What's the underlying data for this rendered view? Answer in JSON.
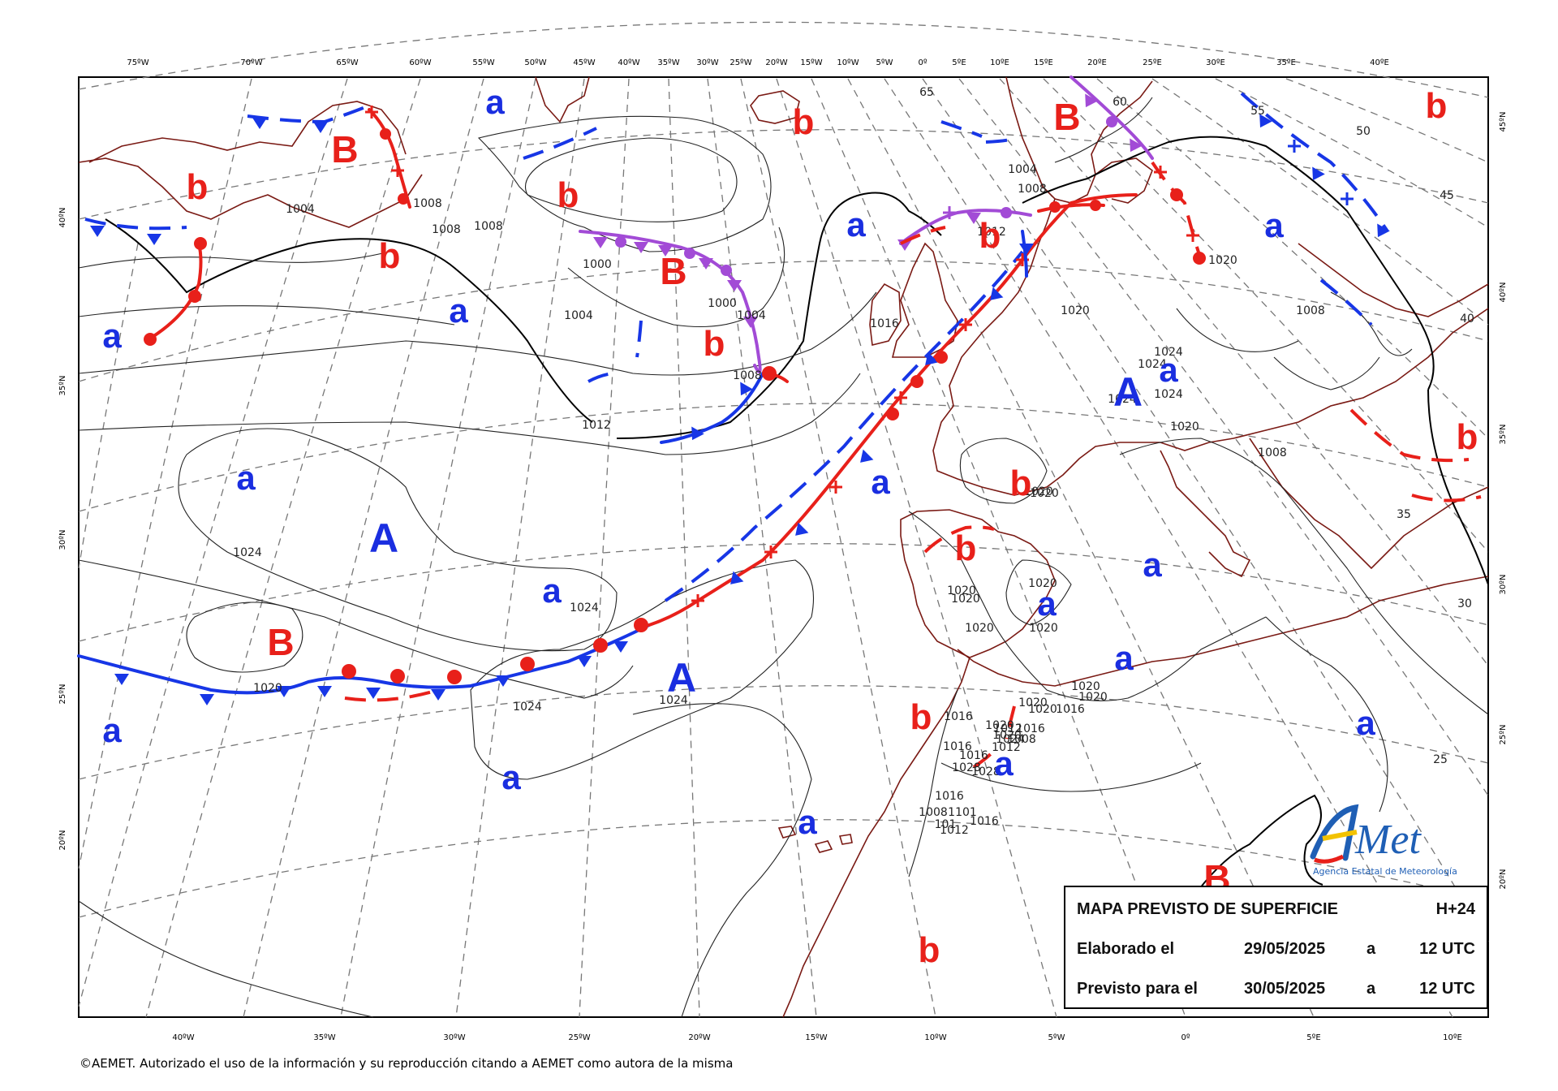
{
  "map": {
    "title": "MAPA PREVISTO DE SUPERFICIE",
    "horizon": "H+24",
    "elaborated_label": "Elaborado el",
    "elaborated_date": "29/05/2025",
    "elaborated_sep": "a",
    "elaborated_time": "12 UTC",
    "valid_label": "Previsto para el",
    "valid_date": "30/05/2025",
    "valid_sep": "a",
    "valid_time": "12 UTC"
  },
  "top_ticks": [
    "75ºW",
    "70ºW",
    "65ºW",
    "60ºW",
    "55ºW",
    "50ºW",
    "45ºW",
    "40ºW",
    "35ºW",
    "30ºW",
    "25ºW",
    "20ºW",
    "15ºW",
    "10ºW",
    "5ºW",
    "0º",
    "5ºE",
    "10ºE",
    "15ºE",
    "20ºE",
    "25ºE",
    "30ºE",
    "35ºE",
    "40ºE"
  ],
  "bottom_ticks": [
    "40ºW",
    "35ºW",
    "30ºW",
    "25ºW",
    "20ºW",
    "15ºW",
    "10ºW",
    "5ºW",
    "0º",
    "5ºE",
    "10ºE"
  ],
  "left_ticks": [
    "40ºN",
    "35ºN",
    "30ºN",
    "25ºN",
    "20ºN"
  ],
  "right_ticks": [
    "45ºN",
    "40ºN",
    "35ºN",
    "30ºN",
    "25ºN",
    "20ºN"
  ],
  "grid_labels": [
    "65",
    "60",
    "55",
    "50",
    "45",
    "40",
    "35",
    "30",
    "25"
  ],
  "isobar_labels": [
    "1004",
    "1008",
    "1008",
    "1008",
    "1000",
    "1004",
    "1004",
    "1000",
    "1008",
    "1012",
    "1024",
    "1020",
    "1024",
    "1024",
    "1024",
    "1016",
    "1004",
    "1008",
    "1012",
    "1020",
    "1020",
    "1024",
    "1024",
    "1024",
    "1020",
    "1020",
    "1020",
    "1020",
    "1020",
    "1020",
    "1020",
    "1020",
    "1020",
    "1016",
    "1016",
    "1016",
    "1024",
    "1020",
    "1028",
    "1016",
    "1028",
    "1024",
    "1020",
    "1020",
    "1020",
    "1020",
    "1016",
    "1016",
    "1012",
    "1008",
    "1012",
    "1101",
    "101",
    "1012",
    "1016",
    "1008",
    "1008",
    "1008"
  ],
  "systems": {
    "high_label": "A",
    "low_label": "B",
    "rel_high": "a",
    "rel_low": "b"
  },
  "colors": {
    "high": "#1a2ee0",
    "low": "#e8201a",
    "occluded": "#a24bd6",
    "cold_front": "#1736e6",
    "warm_front": "#e8201a",
    "coast": "#7a1a14"
  },
  "logo": {
    "name": "AEMet",
    "subtitle": "Agencia Estatal de Meteorología"
  },
  "copyright": "©AEMET. Autorizado el uso de la información y su reproducción citando a AEMET como autora de la misma"
}
